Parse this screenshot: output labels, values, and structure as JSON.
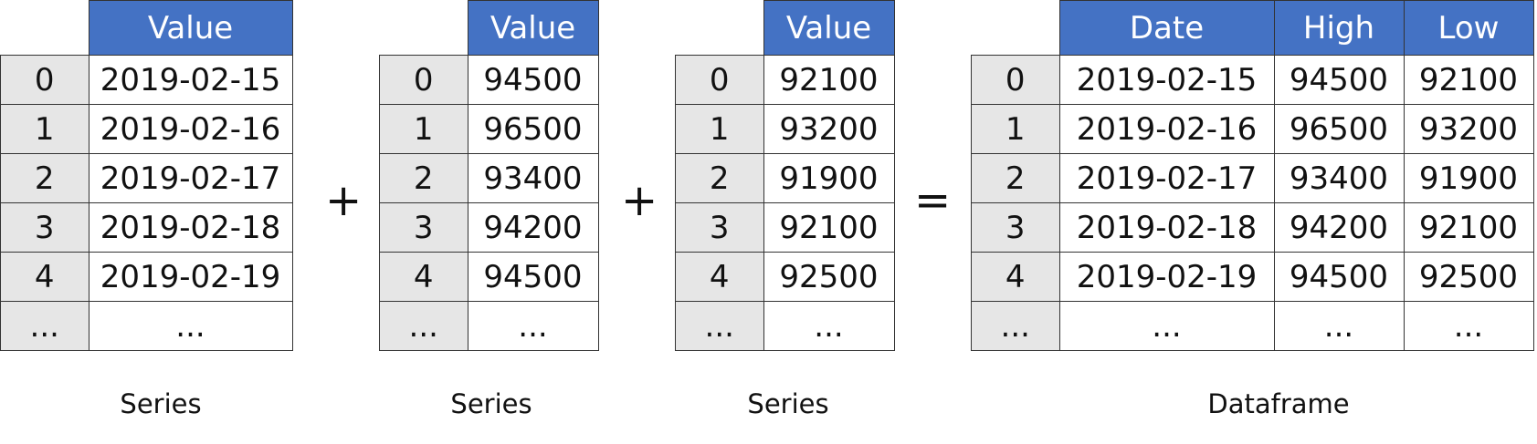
{
  "index": [
    "0",
    "1",
    "2",
    "3",
    "4",
    "..."
  ],
  "series": [
    {
      "header": "Value",
      "values": [
        "2019-02-15",
        "2019-02-16",
        "2019-02-17",
        "2019-02-18",
        "2019-02-19",
        "..."
      ],
      "caption": "Series"
    },
    {
      "header": "Value",
      "values": [
        "94500",
        "96500",
        "93400",
        "94200",
        "94500",
        "..."
      ],
      "caption": "Series"
    },
    {
      "header": "Value",
      "values": [
        "92100",
        "93200",
        "91900",
        "92100",
        "92500",
        "..."
      ],
      "caption": "Series"
    }
  ],
  "dataframe": {
    "headers": [
      "Date",
      "High",
      "Low"
    ],
    "rows": [
      [
        "2019-02-15",
        "94500",
        "92100"
      ],
      [
        "2019-02-16",
        "96500",
        "93200"
      ],
      [
        "2019-02-17",
        "93400",
        "91900"
      ],
      [
        "2019-02-18",
        "94200",
        "92100"
      ],
      [
        "2019-02-19",
        "94500",
        "92500"
      ],
      [
        "...",
        "...",
        "..."
      ]
    ],
    "caption": "Dataframe"
  },
  "operators": [
    "+",
    "+",
    "="
  ],
  "colors": {
    "header_bg": "#4472c4",
    "index_bg": "#e6e6e6"
  }
}
